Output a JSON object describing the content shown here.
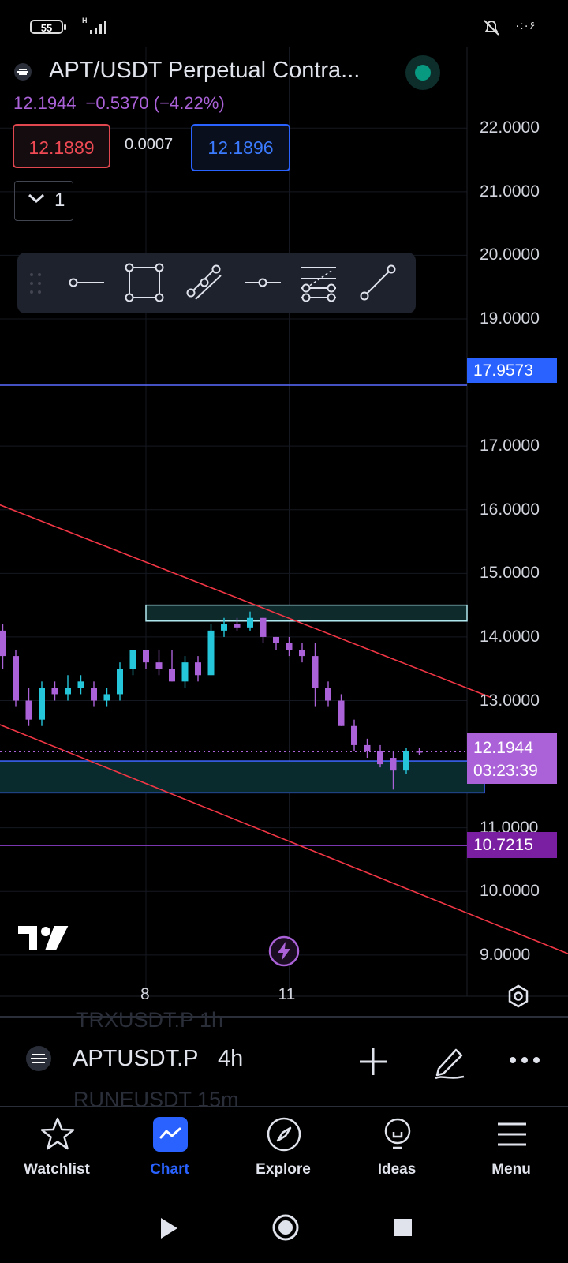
{
  "status_bar": {
    "battery": "55",
    "network": "H",
    "right_text": "۰:۰۶"
  },
  "header": {
    "title": "APT/USDT Perpetual Contra...",
    "last_price": "12.1944",
    "change": "−0.5370 (−4.22%)",
    "bid": "12.1889",
    "spread": "0.0007",
    "ask": "12.1896",
    "collapse_count": "1"
  },
  "toolbar": {
    "items": [
      "drag-handle",
      "horizontal-ray",
      "rectangle",
      "parallel-channel",
      "horizontal-line",
      "fib-retracement",
      "trend-line"
    ]
  },
  "price_tags": {
    "upper_line": "17.9573",
    "current": "12.1944",
    "countdown": "03:23:39",
    "lower_line": "10.7215"
  },
  "chart_data": {
    "type": "candlestick",
    "symbol": "APTUSDT.P",
    "interval": "4h",
    "y_ticks": [
      "22.0000",
      "21.0000",
      "20.0000",
      "19.0000",
      "17.0000",
      "16.0000",
      "15.0000",
      "14.0000",
      "13.0000",
      "11.0000",
      "10.0000",
      "9.0000"
    ],
    "ylim": [
      8.75,
      22.4
    ],
    "x_ticks": [
      {
        "index": 11,
        "label": "8"
      },
      {
        "index": 22,
        "label": "11"
      }
    ],
    "candles": [
      {
        "o": 14.1,
        "h": 14.2,
        "l": 13.5,
        "c": 13.7
      },
      {
        "o": 13.7,
        "h": 13.8,
        "l": 12.9,
        "c": 13.0
      },
      {
        "o": 13.0,
        "h": 13.2,
        "l": 12.6,
        "c": 12.7
      },
      {
        "o": 12.7,
        "h": 13.3,
        "l": 12.6,
        "c": 13.2
      },
      {
        "o": 13.2,
        "h": 13.3,
        "l": 13.0,
        "c": 13.1
      },
      {
        "o": 13.1,
        "h": 13.4,
        "l": 13.0,
        "c": 13.2
      },
      {
        "o": 13.2,
        "h": 13.4,
        "l": 13.1,
        "c": 13.3
      },
      {
        "o": 13.2,
        "h": 13.3,
        "l": 12.9,
        "c": 13.0
      },
      {
        "o": 13.0,
        "h": 13.2,
        "l": 12.9,
        "c": 13.1
      },
      {
        "o": 13.1,
        "h": 13.6,
        "l": 13.0,
        "c": 13.5
      },
      {
        "o": 13.5,
        "h": 13.8,
        "l": 13.4,
        "c": 13.8
      },
      {
        "o": 13.8,
        "h": 13.8,
        "l": 13.5,
        "c": 13.6
      },
      {
        "o": 13.6,
        "h": 13.8,
        "l": 13.4,
        "c": 13.5
      },
      {
        "o": 13.5,
        "h": 13.8,
        "l": 13.3,
        "c": 13.3
      },
      {
        "o": 13.3,
        "h": 13.7,
        "l": 13.2,
        "c": 13.6
      },
      {
        "o": 13.6,
        "h": 13.7,
        "l": 13.3,
        "c": 13.4
      },
      {
        "o": 13.4,
        "h": 14.2,
        "l": 13.4,
        "c": 14.1
      },
      {
        "o": 14.1,
        "h": 14.3,
        "l": 14.0,
        "c": 14.2
      },
      {
        "o": 14.2,
        "h": 14.3,
        "l": 14.1,
        "c": 14.15
      },
      {
        "o": 14.15,
        "h": 14.4,
        "l": 14.1,
        "c": 14.3
      },
      {
        "o": 14.3,
        "h": 14.3,
        "l": 13.9,
        "c": 14.0
      },
      {
        "o": 14.0,
        "h": 14.0,
        "l": 13.8,
        "c": 13.9
      },
      {
        "o": 13.9,
        "h": 14.0,
        "l": 13.7,
        "c": 13.8
      },
      {
        "o": 13.8,
        "h": 13.9,
        "l": 13.6,
        "c": 13.7
      },
      {
        "o": 13.7,
        "h": 13.9,
        "l": 12.9,
        "c": 13.2
      },
      {
        "o": 13.2,
        "h": 13.3,
        "l": 12.9,
        "c": 13.0
      },
      {
        "o": 13.0,
        "h": 13.1,
        "l": 12.6,
        "c": 12.6
      },
      {
        "o": 12.6,
        "h": 12.7,
        "l": 12.2,
        "c": 12.3
      },
      {
        "o": 12.3,
        "h": 12.4,
        "l": 12.1,
        "c": 12.2
      },
      {
        "o": 12.2,
        "h": 12.3,
        "l": 11.95,
        "c": 12.0
      },
      {
        "o": 12.1,
        "h": 12.2,
        "l": 11.6,
        "c": 11.9
      },
      {
        "o": 11.9,
        "h": 12.25,
        "l": 11.85,
        "c": 12.2
      },
      {
        "o": 12.2,
        "h": 12.25,
        "l": 12.15,
        "c": 12.19
      }
    ],
    "horizontal_lines": [
      {
        "price": 17.9573,
        "color": "#5b6cff"
      },
      {
        "price": 10.7215,
        "color": "#8a3fc7"
      }
    ],
    "current_price": 12.1944,
    "zones": [
      {
        "from_index": 11,
        "to_index": "end",
        "y1": 14.5,
        "y2": 14.25,
        "border": "#b2ebf2",
        "fill": "#0e2a2b"
      },
      {
        "from_index": -1,
        "to_index": 37,
        "y1": 12.05,
        "y2": 11.55,
        "border": "#3f66ff",
        "fill": "#0a2b2d"
      }
    ],
    "trendlines": [
      {
        "x1": -3,
        "y1": 16.3,
        "x2": 37.5,
        "y2": 13.05,
        "color": "#f23645"
      },
      {
        "x1": -3,
        "y1": 12.85,
        "x2": 45.5,
        "y2": 8.85,
        "color": "#f23645"
      }
    ],
    "colors": {
      "up": "#26c6da",
      "down": "#ab62d8"
    }
  },
  "bottom_bar": {
    "symbol": "APTUSDT.P",
    "interval": "4h",
    "ghost_top": "TRXUSDT.P 1h",
    "ghost_bottom": "RUNEUSDT 15m"
  },
  "nav": {
    "items": [
      {
        "label": "Watchlist",
        "icon": "star-icon"
      },
      {
        "label": "Chart",
        "icon": "chart-icon"
      },
      {
        "label": "Explore",
        "icon": "compass-icon"
      },
      {
        "label": "Ideas",
        "icon": "lightbulb-icon"
      },
      {
        "label": "Menu",
        "icon": "menu-icon"
      }
    ]
  }
}
